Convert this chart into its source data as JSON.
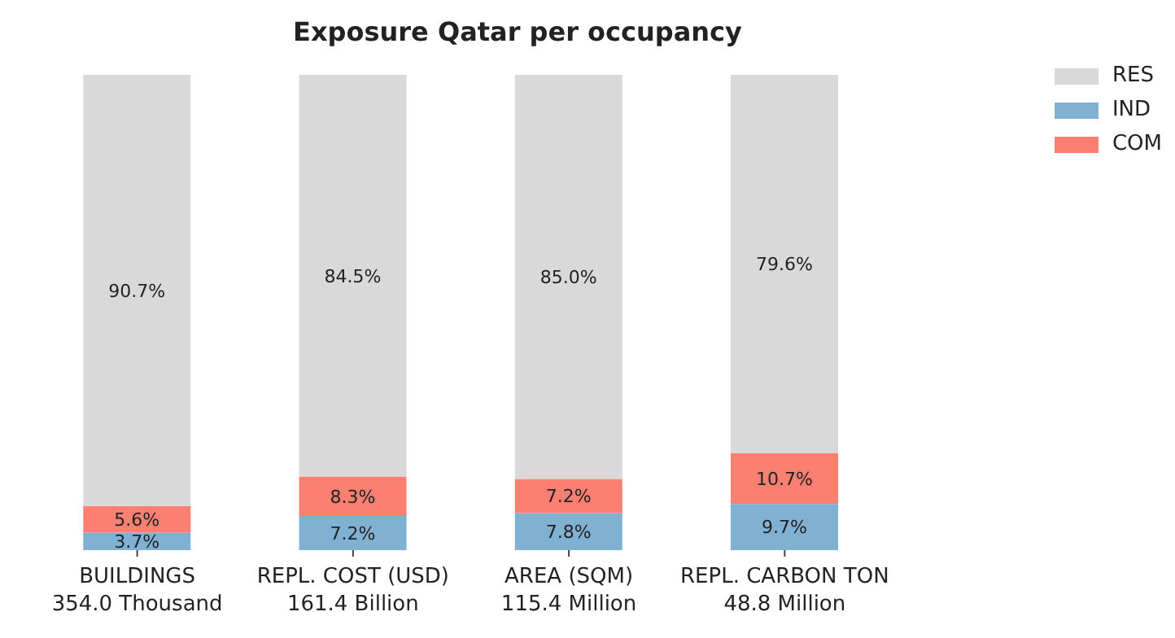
{
  "chart_data": {
    "type": "bar",
    "title": "Exposure Qatar per occupancy",
    "stacked": true,
    "legend": "top right",
    "grid": false,
    "tick_labels": "x",
    "categories": [
      "BUILDINGS\n354.0 Thousand",
      "REPL. COST (USD)\n161.4 Billion",
      "AREA (SQM)\n115.4 Million",
      "REPL. CARBON TON\n48.8 Million"
    ],
    "series": [
      {
        "name": "IND",
        "color": "#80b1d3",
        "values": [
          3.7,
          7.2,
          7.8,
          9.7
        ],
        "value_labels": [
          "3.7%",
          "7.2%",
          "7.8%",
          "9.7%"
        ]
      },
      {
        "name": "COM",
        "color": "#fb8072",
        "values": [
          5.6,
          8.3,
          7.2,
          10.7
        ],
        "value_labels": [
          "5.6%",
          "8.3%",
          "7.2%",
          "10.7%"
        ]
      },
      {
        "name": "RES",
        "color": "#d9d9d9",
        "values": [
          90.7,
          84.5,
          85.0,
          79.6
        ],
        "value_labels": [
          "90.7%",
          "84.5%",
          "85.0%",
          "79.6%"
        ]
      }
    ]
  }
}
